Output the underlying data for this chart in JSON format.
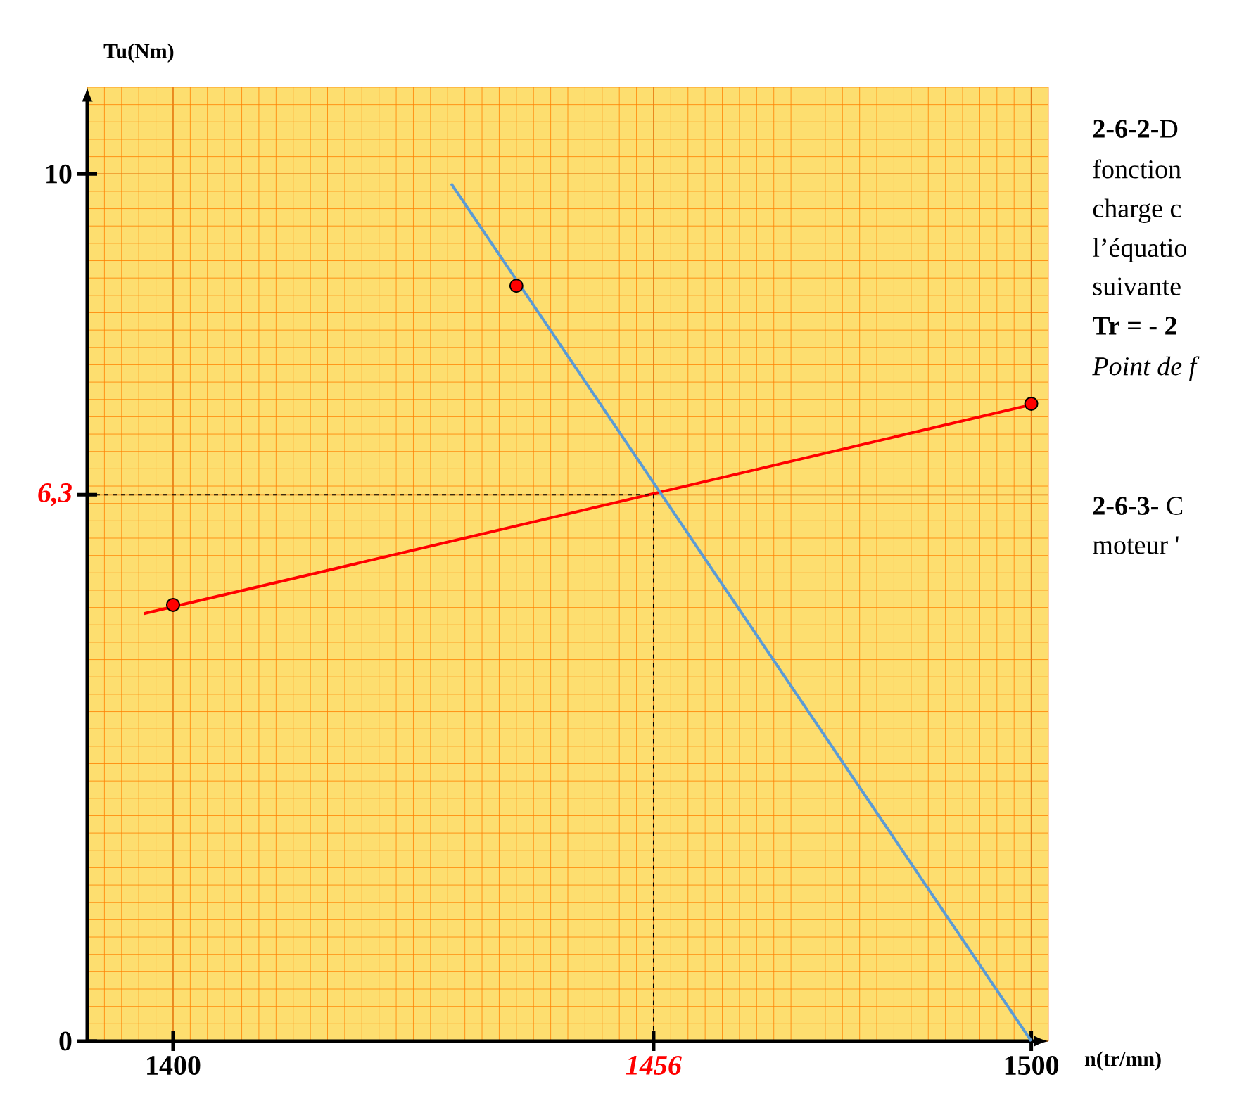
{
  "chart_data": {
    "type": "line",
    "xlabel": "n(tr/mn)",
    "ylabel": "Tu(Nm)",
    "xlim": [
      1390,
      1502
    ],
    "ylim": [
      0,
      11
    ],
    "xticks": [
      1400,
      {
        "value": 1456,
        "label": "*1456*"
      },
      1500
    ],
    "yticks": [
      0,
      {
        "value": 6.3,
        "label": "*6,3*"
      },
      10
    ],
    "grid": true,
    "series": [
      {
        "color": "#ff0000",
        "x": [
          1396.6,
          1500.5
        ],
        "values": [
          4.93,
          7.35
        ],
        "marker": "none",
        "line_style": "solid"
      },
      {
        "color": "#5b9bd5",
        "x": [
          1432.4,
          1500
        ],
        "values": [
          9.89,
          0
        ],
        "marker": "none",
        "line_style": "solid"
      },
      {
        "color": "#000000",
        "x": [
          1390,
          1456,
          1456
        ],
        "values": [
          6.3,
          6.3,
          0
        ],
        "marker": "none",
        "line_style": "dashed"
      },
      {
        "type": "scatter",
        "color": "#ff0000",
        "x": [
          1400,
          1440,
          1500
        ],
        "values": [
          5.03,
          8.71,
          7.35
        ],
        "marker": "circle"
      }
    ],
    "annotations": [
      "**2-6-2-**D",
      "fonction",
      "charge c",
      "l’équatio",
      "suivante",
      "**Tr = - 2**",
      "*Point de f*",
      "**2-6-3-** C",
      "moteur '"
    ]
  }
}
